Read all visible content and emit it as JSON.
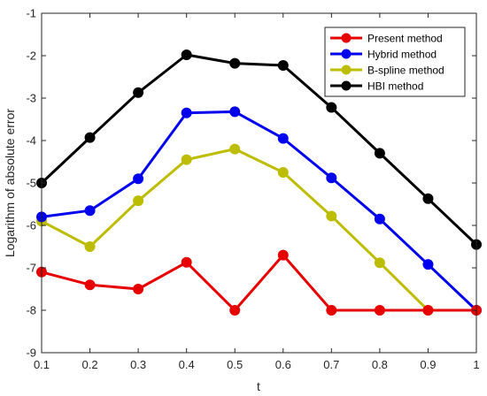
{
  "chart_data": {
    "type": "line",
    "xlabel": "t",
    "ylabel": "Logarithm of absolute error",
    "xlim": [
      0.1,
      1
    ],
    "ylim": [
      -9,
      -1
    ],
    "x_ticks": [
      "0.1",
      "0.2",
      "0.3",
      "0.4",
      "0.5",
      "0.6",
      "0.7",
      "0.8",
      "0.9",
      "1"
    ],
    "y_ticks": [
      "-1",
      "-2",
      "-3",
      "-4",
      "-5",
      "-6",
      "-7",
      "-8",
      "-9"
    ],
    "grid": false,
    "legend_position": "top-right",
    "series": [
      {
        "name": "Present method",
        "color": "#e60000",
        "x": [
          0.1,
          0.2,
          0.3,
          0.4,
          0.5,
          0.6,
          0.7,
          0.8,
          0.9,
          1.0
        ],
        "y": [
          -7.1,
          -7.4,
          -7.5,
          -6.87,
          -8.0,
          -6.7,
          -8.0,
          -8.0,
          -8.0,
          -8.0
        ]
      },
      {
        "name": "Hybrid method",
        "color": "#0000ee",
        "x": [
          0.1,
          0.2,
          0.3,
          0.4,
          0.5,
          0.6,
          0.7,
          0.8,
          0.9,
          1.0
        ],
        "y": [
          -5.8,
          -5.65,
          -4.9,
          -3.35,
          -3.32,
          -3.95,
          -4.88,
          -5.85,
          -6.92,
          -8.0
        ]
      },
      {
        "name": "B-spline method",
        "color": "#bdbd00",
        "x": [
          0.1,
          0.2,
          0.3,
          0.4,
          0.5,
          0.6,
          0.7,
          0.8,
          0.9
        ],
        "y": [
          -5.9,
          -6.5,
          -5.42,
          -4.45,
          -4.2,
          -4.75,
          -5.78,
          -6.88,
          -8.0
        ]
      },
      {
        "name": "HBI method",
        "color": "#000000",
        "x": [
          0.1,
          0.2,
          0.3,
          0.4,
          0.5,
          0.6,
          0.7,
          0.8,
          0.9,
          1.0
        ],
        "y": [
          -5.0,
          -3.93,
          -2.87,
          -1.98,
          -2.18,
          -2.23,
          -3.22,
          -4.3,
          -5.37,
          -6.45
        ]
      }
    ]
  }
}
